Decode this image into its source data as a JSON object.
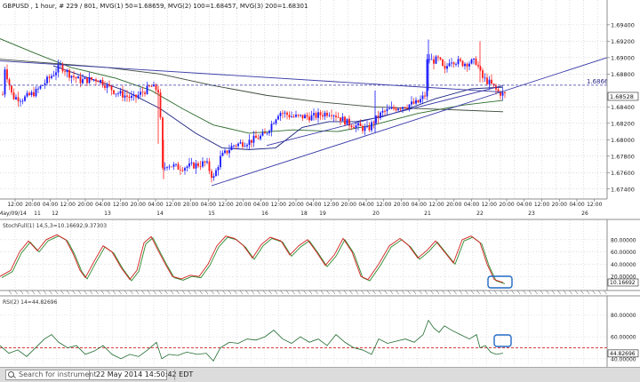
{
  "main_chart": {
    "header": "GBPUSD , 1 hour, # 229 / 801, MVG(1) 50=1.68659, MVG(2) 100=1.68457, MVG(3) 200=1.68301",
    "price_ticks": [
      "1.69400",
      "1.69200",
      "1.69000",
      "1.68800",
      "1.68400",
      "1.68200",
      "1.68000",
      "1.67800",
      "1.67600",
      "1.67400"
    ],
    "price_ticks_values": [
      1.694,
      1.692,
      1.69,
      1.688,
      1.684,
      1.682,
      1.68,
      1.678,
      1.676,
      1.674
    ],
    "hline_value": 1.68664,
    "hline_label": "1.68664",
    "last_price_label": "1.68528",
    "last_price_value": 1.68528,
    "ylim": [
      1.673,
      1.6955
    ],
    "colors": {
      "up": "#1515ff",
      "down": "#ff1a1a",
      "ma50": "#1a237e",
      "ma100": "#2e6b2e",
      "ma200": "#3d4a3d",
      "trend": "#3a3aa8",
      "hline": "#3a3aa8"
    }
  },
  "time_axis": {
    "hour_labels": [
      "12:00",
      "20:00",
      "04:00",
      "12:00",
      "20:00",
      "04:00",
      "12:00",
      "20:00",
      "04:00",
      "12:00",
      "20:00",
      "04:00",
      "12:00",
      "20:00",
      "04:00",
      "12:00",
      "20:00",
      "04:00",
      "12:00",
      "20:00",
      "04:00",
      "12:00",
      "20:00",
      "04:00",
      "12:00",
      "20:00",
      "04:00",
      "12:00",
      "20:00",
      "04:00",
      "12:00",
      "20:00",
      "04:00",
      "12:00"
    ],
    "day_labels": [
      "May/09/14",
      "11",
      "12",
      "13",
      "14",
      "15",
      "16",
      "18",
      "19",
      "20",
      "21",
      "22",
      "23",
      "26"
    ]
  },
  "stoch_panel": {
    "header": "StochFull(1) 14,5,3=10.16692,9.37303",
    "ticks": [
      "80.00000",
      "60.00000",
      "40.00000",
      "20.00000"
    ],
    "ticks_values": [
      80,
      60,
      40,
      20
    ],
    "current_label": "10.16692",
    "current_value": 10.16692,
    "ylim": [
      0,
      100
    ],
    "colors": {
      "k": "#d42020",
      "d": "#2b8a2b"
    }
  },
  "rsi_panel": {
    "header": "RSI(2) 14=44.82696",
    "ticks": [
      "80.00000",
      "60.00000",
      "40.00000"
    ],
    "ticks_values": [
      80,
      60,
      40
    ],
    "current_label": "44.82696",
    "current_value": 44.82696,
    "level_value": 50,
    "ylim": [
      35,
      90
    ],
    "colors": {
      "line": "#1f6b2f",
      "level": "#d42020"
    }
  },
  "statusbar": {
    "search_placeholder": "Search for instrument",
    "datetime": "22 May 2014 14:50:42 EDT"
  },
  "chart_data": {
    "type": "candlestick",
    "symbol": "GBPUSD",
    "timeframe": "1 hour",
    "moving_averages": [
      {
        "name": "MVG(1) 50",
        "value": 1.68659
      },
      {
        "name": "MVG(2) 100",
        "value": 1.68457
      },
      {
        "name": "MVG(3) 200",
        "value": 1.68301
      }
    ],
    "indicators": [
      {
        "name": "StochFull(1) 14,5,3",
        "values": [
          10.16692,
          9.37303
        ]
      },
      {
        "name": "RSI(2) 14",
        "value": 44.82696
      }
    ],
    "horizontal_line": 1.68664,
    "last_price": 1.68528,
    "grid": true
  }
}
